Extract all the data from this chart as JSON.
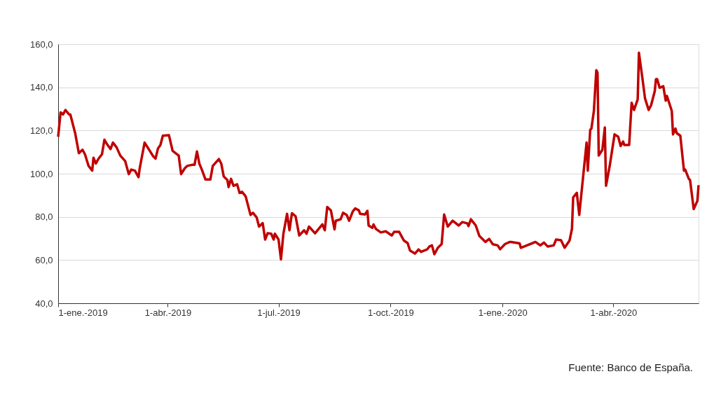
{
  "chart_data": {
    "type": "line",
    "x": [
      "2019-01-01",
      "2019-01-03",
      "2019-01-05",
      "2019-01-07",
      "2019-01-10",
      "2019-01-11",
      "2019-01-15",
      "2019-01-18",
      "2019-01-21",
      "2019-01-23",
      "2019-01-26",
      "2019-01-29",
      "2019-01-30",
      "2019-02-01",
      "2019-02-03",
      "2019-02-06",
      "2019-02-08",
      "2019-02-10",
      "2019-02-13",
      "2019-02-15",
      "2019-02-18",
      "2019-02-21",
      "2019-02-25",
      "2019-02-28",
      "2019-03-02",
      "2019-03-05",
      "2019-03-08",
      "2019-03-09",
      "2019-03-13",
      "2019-03-16",
      "2019-03-20",
      "2019-03-22",
      "2019-03-24",
      "2019-03-26",
      "2019-03-28",
      "2019-04-02",
      "2019-04-05",
      "2019-04-10",
      "2019-04-12",
      "2019-04-15",
      "2019-04-17",
      "2019-04-21",
      "2019-04-23",
      "2019-04-25",
      "2019-04-27",
      "2019-04-29",
      "2019-05-02",
      "2019-05-06",
      "2019-05-08",
      "2019-05-13",
      "2019-05-15",
      "2019-05-17",
      "2019-05-20",
      "2019-05-21",
      "2019-05-23",
      "2019-05-25",
      "2019-05-28",
      "2019-05-30",
      "2019-06-01",
      "2019-06-04",
      "2019-06-08",
      "2019-06-10",
      "2019-06-13",
      "2019-06-15",
      "2019-06-18",
      "2019-06-20",
      "2019-06-22",
      "2019-06-25",
      "2019-06-27",
      "2019-06-28",
      "2019-07-01",
      "2019-07-03",
      "2019-07-05",
      "2019-07-08",
      "2019-07-10",
      "2019-07-12",
      "2019-07-15",
      "2019-07-18",
      "2019-07-22",
      "2019-07-24",
      "2019-07-26",
      "2019-07-31",
      "2019-08-06",
      "2019-08-08",
      "2019-08-10",
      "2019-08-13",
      "2019-08-16",
      "2019-08-17",
      "2019-08-21",
      "2019-08-23",
      "2019-08-26",
      "2019-08-28",
      "2019-08-31",
      "2019-09-02",
      "2019-09-05",
      "2019-09-06",
      "2019-09-10",
      "2019-09-12",
      "2019-09-13",
      "2019-09-16",
      "2019-09-17",
      "2019-09-19",
      "2019-09-23",
      "2019-09-27",
      "2019-10-02",
      "2019-10-04",
      "2019-10-08",
      "2019-10-12",
      "2019-10-15",
      "2019-10-17",
      "2019-10-21",
      "2019-10-24",
      "2019-10-26",
      "2019-10-31",
      "2019-11-02",
      "2019-11-04",
      "2019-11-06",
      "2019-11-09",
      "2019-11-12",
      "2019-11-14",
      "2019-11-17",
      "2019-11-21",
      "2019-11-26",
      "2019-11-29",
      "2019-12-03",
      "2019-12-04",
      "2019-12-06",
      "2019-12-10",
      "2019-12-13",
      "2019-12-18",
      "2019-12-21",
      "2019-12-24",
      "2019-12-28",
      "2019-12-30",
      "2020-01-03",
      "2020-01-07",
      "2020-01-08",
      "2020-01-15",
      "2020-01-16",
      "2020-01-21",
      "2020-01-28",
      "2020-02-01",
      "2020-02-04",
      "2020-02-07",
      "2020-02-12",
      "2020-02-14",
      "2020-02-18",
      "2020-02-21",
      "2020-02-25",
      "2020-02-27",
      "2020-02-28",
      "2020-03-02",
      "2020-03-04",
      "2020-03-10",
      "2020-03-11",
      "2020-03-13",
      "2020-03-14",
      "2020-03-16",
      "2020-03-18",
      "2020-03-19",
      "2020-03-20",
      "2020-03-23",
      "2020-03-25",
      "2020-03-26",
      "2020-03-29",
      "2020-04-02",
      "2020-04-05",
      "2020-04-07",
      "2020-04-09",
      "2020-04-10",
      "2020-04-14",
      "2020-04-16",
      "2020-04-18",
      "2020-04-21",
      "2020-04-22",
      "2020-04-25",
      "2020-04-27",
      "2020-04-30",
      "2020-05-02",
      "2020-05-05",
      "2020-05-06",
      "2020-05-07",
      "2020-05-09",
      "2020-05-12",
      "2020-05-14",
      "2020-05-15",
      "2020-05-19",
      "2020-05-20",
      "2020-05-22",
      "2020-05-23",
      "2020-05-26",
      "2020-05-29",
      "2020-05-30",
      "2020-06-02",
      "2020-06-03",
      "2020-06-06",
      "2020-06-09",
      "2020-06-10"
    ],
    "series": [
      {
        "color": "#c00000",
        "values": [
          117.1,
          128.4,
          127.4,
          129.5,
          127.4,
          127.4,
          118.7,
          109.5,
          111.1,
          109,
          103.6,
          101.4,
          107.4,
          104.7,
          106.8,
          109,
          115.7,
          113.8,
          111.4,
          114.4,
          112.2,
          108.4,
          105.9,
          99.8,
          101.9,
          101.4,
          98.4,
          102.5,
          114.4,
          111.7,
          108.1,
          107,
          111.7,
          113.3,
          117.6,
          117.8,
          110.6,
          108.4,
          99.8,
          102.5,
          103.6,
          104.1,
          104.1,
          110.3,
          104.6,
          101.9,
          97.3,
          97.3,
          103.6,
          106.8,
          104.6,
          98.7,
          97.1,
          93.8,
          97.6,
          94.4,
          95.1,
          91.1,
          91.6,
          89.5,
          80.9,
          81.9,
          79.8,
          75.5,
          77.1,
          69.5,
          72.4,
          72.2,
          69.5,
          72.2,
          69.5,
          60.3,
          72.2,
          81.4,
          73.8,
          81.7,
          80.3,
          71.4,
          73.8,
          72.2,
          75.5,
          72.4,
          76.5,
          73.8,
          84.6,
          83,
          74.2,
          78.2,
          78.9,
          81.9,
          80.9,
          78.2,
          82.5,
          83.9,
          83,
          81.4,
          81.1,
          82.8,
          76,
          74.9,
          76.5,
          74.4,
          72.8,
          73.3,
          71.4,
          73.1,
          73.1,
          69,
          67.9,
          64.4,
          63,
          64.9,
          63.8,
          64.9,
          66.3,
          66.8,
          62.7,
          65.8,
          67.4,
          81.1,
          75.5,
          78.2,
          76,
          77.6,
          77,
          75.7,
          78.9,
          76,
          71.1,
          68.4,
          69.8,
          67.3,
          66.8,
          65,
          67.4,
          68.4,
          68.4,
          67.7,
          65.7,
          66.8,
          68.4,
          66.8,
          68.1,
          66.3,
          66.8,
          69.5,
          69.2,
          65.7,
          69,
          74.4,
          89,
          91.1,
          80.9,
          114.4,
          101.4,
          120.3,
          120.9,
          129,
          147.9,
          146.8,
          108.4,
          111.1,
          121.4,
          94.4,
          103.6,
          118.2,
          117.1,
          112.8,
          114.9,
          113.3,
          113.3,
          132.8,
          129.5,
          134.4,
          156,
          143.6,
          134.9,
          129.5,
          131.7,
          138.2,
          143.8,
          143.8,
          139.8,
          140.5,
          133.8,
          136,
          129,
          118.2,
          120.9,
          118.8,
          117.6,
          101.4,
          101.9,
          97.6,
          97.1,
          83.6,
          87.4,
          94.7
        ]
      }
    ],
    "xlim": [
      "2019-01-01",
      "2020-06-10"
    ],
    "xticks": [
      {
        "value": "2019-01-01",
        "label": "1-ene.-2019"
      },
      {
        "value": "2019-04-01",
        "label": "1-abr.-2019"
      },
      {
        "value": "2019-07-01",
        "label": "1-jul.-2019"
      },
      {
        "value": "2019-10-01",
        "label": "1-oct.-2019"
      },
      {
        "value": "2020-01-01",
        "label": "1-ene.-2020"
      },
      {
        "value": "2020-04-01",
        "label": "1-abr.-2020"
      }
    ],
    "ylim": [
      40,
      160
    ],
    "yticks": [
      {
        "value": 40,
        "label": "40,0"
      },
      {
        "value": 60,
        "label": "60,0"
      },
      {
        "value": 80,
        "label": "80,0"
      },
      {
        "value": 100,
        "label": "100,0"
      },
      {
        "value": 120,
        "label": "120,0"
      },
      {
        "value": 140,
        "label": "140,0"
      },
      {
        "value": 160,
        "label": "160,0"
      }
    ],
    "grid": "y",
    "line_style": "solid",
    "marker": "none",
    "annotations": [
      "Fuente: Banco de España."
    ]
  }
}
